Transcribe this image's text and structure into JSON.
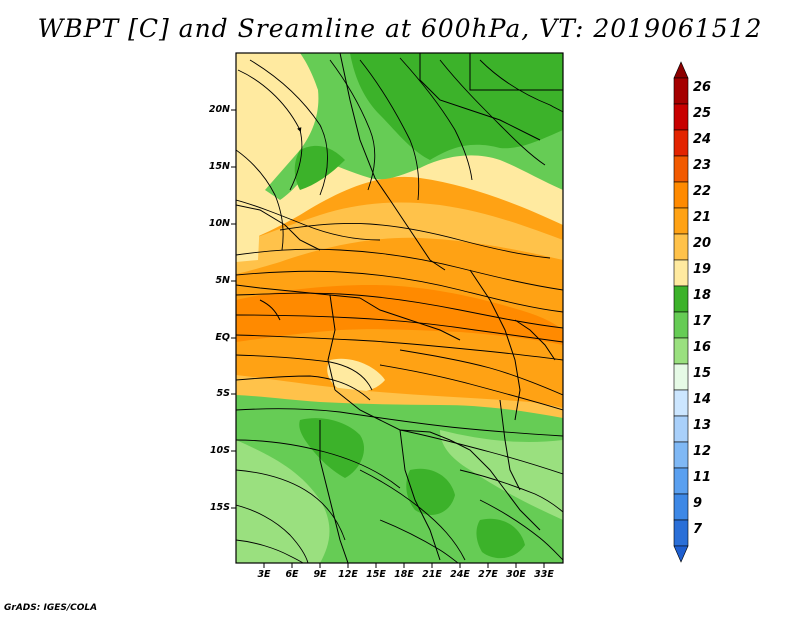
{
  "title": "WBPT [C] and Sreamline at 600hPa, VT: 2019061512",
  "credit": "GrADS: IGES/COLA",
  "map": {
    "lat_labels": [
      "20N",
      "15N",
      "10N",
      "5N",
      "EQ",
      "5S",
      "10S",
      "15S"
    ],
    "lon_labels": [
      "3E",
      "6E",
      "9E",
      "12E",
      "15E",
      "18E",
      "21E",
      "24E",
      "27E",
      "30E",
      "33E"
    ],
    "extent": {
      "lon_min": 0,
      "lon_max": 35,
      "lat_min": -20,
      "lat_max": 24.5
    }
  },
  "colorbar": {
    "labels": [
      "26",
      "25",
      "24",
      "23",
      "22",
      "21",
      "20",
      "19",
      "18",
      "17",
      "16",
      "15",
      "14",
      "13",
      "12",
      "11",
      "9",
      "7"
    ],
    "colors": [
      "#a50000",
      "#c80000",
      "#e32400",
      "#f25a00",
      "#ff8a00",
      "#ffa214",
      "#ffc24a",
      "#ffeaa0",
      "#3cb22a",
      "#66cc55",
      "#9ae07f",
      "#e6fae6",
      "#cce6ff",
      "#a9d0fa",
      "#7fb8f5",
      "#5aa0f0",
      "#3d88e6",
      "#2a6fd8"
    ],
    "top_arrow_color": "#8b0000",
    "bottom_arrow_color": "#1e5fd0"
  },
  "field_colors": {
    "green_dark": "#3cb22a",
    "green": "#66cc55",
    "green_light": "#9ae07f",
    "yellow": "#ffeaa0",
    "orange_light": "#ffc24a",
    "orange": "#ffa214",
    "orange_dark": "#ff8a00"
  }
}
